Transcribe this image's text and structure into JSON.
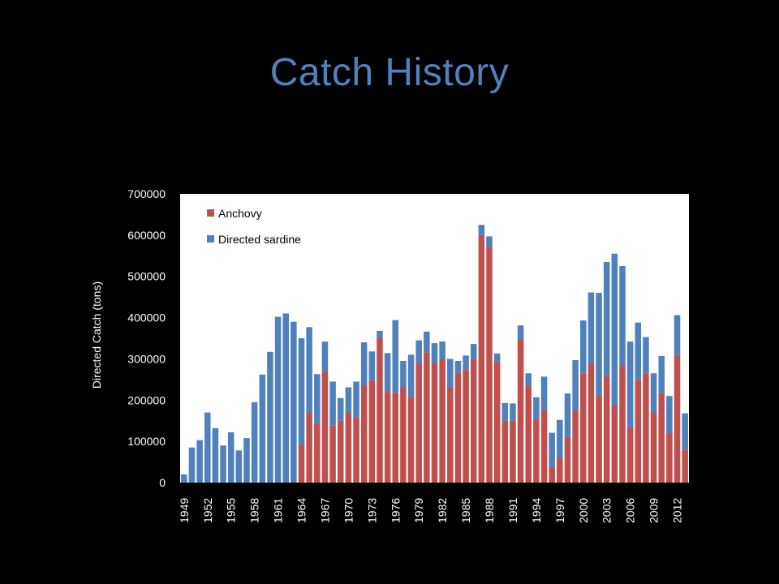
{
  "slide": {
    "title": "Catch History"
  },
  "colors": {
    "background": "#000000",
    "title": "#4f81bd",
    "anchovy": "#c0504d",
    "sardine": "#4f81bd",
    "plot_bg": "#ffffff"
  },
  "chart_data": {
    "type": "bar",
    "stacked": true,
    "title": "",
    "xlabel": "",
    "ylabel": "Directed Catch (tons)",
    "ylim": [
      0,
      700000
    ],
    "yticks": [
      0,
      100000,
      200000,
      300000,
      400000,
      500000,
      600000,
      700000
    ],
    "xtick_labels": [
      "1949",
      "1952",
      "1955",
      "1958",
      "1961",
      "1964",
      "1967",
      "1970",
      "1973",
      "1976",
      "1979",
      "1982",
      "1985",
      "1988",
      "1991",
      "1994",
      "1997",
      "2000",
      "2003",
      "2006",
      "2009",
      "2012"
    ],
    "legend_position": "top-left",
    "grid": false,
    "categories": [
      "1949",
      "1950",
      "1951",
      "1952",
      "1953",
      "1954",
      "1955",
      "1956",
      "1957",
      "1958",
      "1959",
      "1960",
      "1961",
      "1962",
      "1963",
      "1964",
      "1965",
      "1966",
      "1967",
      "1968",
      "1969",
      "1970",
      "1971",
      "1972",
      "1973",
      "1974",
      "1975",
      "1976",
      "1977",
      "1978",
      "1979",
      "1980",
      "1981",
      "1982",
      "1983",
      "1984",
      "1985",
      "1986",
      "1987",
      "1988",
      "1989",
      "1990",
      "1991",
      "1992",
      "1993",
      "1994",
      "1995",
      "1996",
      "1997",
      "1998",
      "1999",
      "2000",
      "2001",
      "2002",
      "2003",
      "2004",
      "2005",
      "2006",
      "2007",
      "2008",
      "2009",
      "2010",
      "2011",
      "2012",
      "2013"
    ],
    "series": [
      {
        "name": "Anchovy",
        "values": [
          0,
          0,
          0,
          0,
          0,
          0,
          0,
          0,
          0,
          0,
          0,
          0,
          0,
          0,
          0,
          93000,
          170000,
          143000,
          270000,
          138000,
          150000,
          170000,
          158000,
          235000,
          248000,
          350000,
          220000,
          217000,
          232000,
          208000,
          290000,
          316000,
          290000,
          300000,
          232000,
          267000,
          273000,
          300000,
          600000,
          572000,
          293000,
          150000,
          150000,
          348000,
          235000,
          155000,
          175000,
          38000,
          60000,
          110000,
          175000,
          265000,
          288000,
          212000,
          258000,
          187000,
          283000,
          135000,
          248000,
          265000,
          170000,
          217000,
          120000,
          308000,
          80000
        ]
      },
      {
        "name": "Directed sardine",
        "values": [
          20000,
          85000,
          103000,
          170000,
          132000,
          90000,
          122000,
          78000,
          108000,
          195000,
          262000,
          317000,
          402000,
          410000,
          390000,
          257000,
          207000,
          120000,
          72000,
          107000,
          55000,
          61000,
          87000,
          105000,
          70000,
          18000,
          94000,
          177000,
          63000,
          102000,
          55000,
          50000,
          48000,
          42000,
          68000,
          28000,
          35000,
          36000,
          25000,
          25000,
          20000,
          43000,
          42000,
          33000,
          30000,
          52000,
          82000,
          83000,
          92000,
          106000,
          122000,
          128000,
          173000,
          248000,
          277000,
          368000,
          242000,
          207000,
          140000,
          88000,
          95000,
          90000,
          90000,
          98000,
          88000
        ]
      }
    ]
  }
}
